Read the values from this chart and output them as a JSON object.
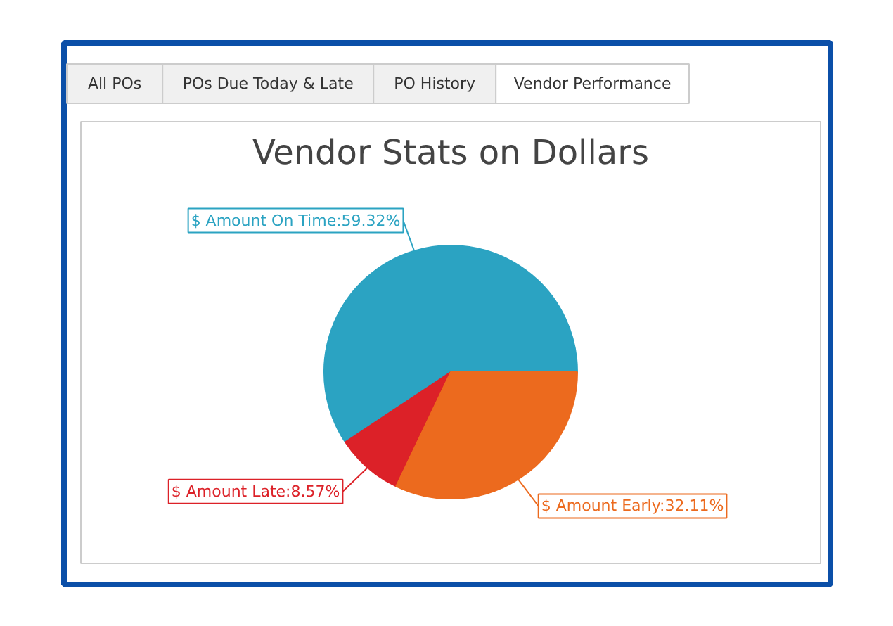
{
  "chart_data": {
    "type": "pie",
    "title": "Vendor Stats on Dollars",
    "categories": [
      "$ Amount On Time",
      "$ Amount Late",
      "$ Amount Early"
    ],
    "values": [
      59.32,
      8.57,
      32.11
    ],
    "colors": [
      "#2ba3c2",
      "#dc2128",
      "#ec6a1e"
    ],
    "value_labels": [
      "59.32%",
      "8.57%",
      "32.11%"
    ],
    "annotations": [
      "All POs",
      "POs Due Today & Late",
      "PO History",
      "Vendor Performance"
    ]
  }
}
